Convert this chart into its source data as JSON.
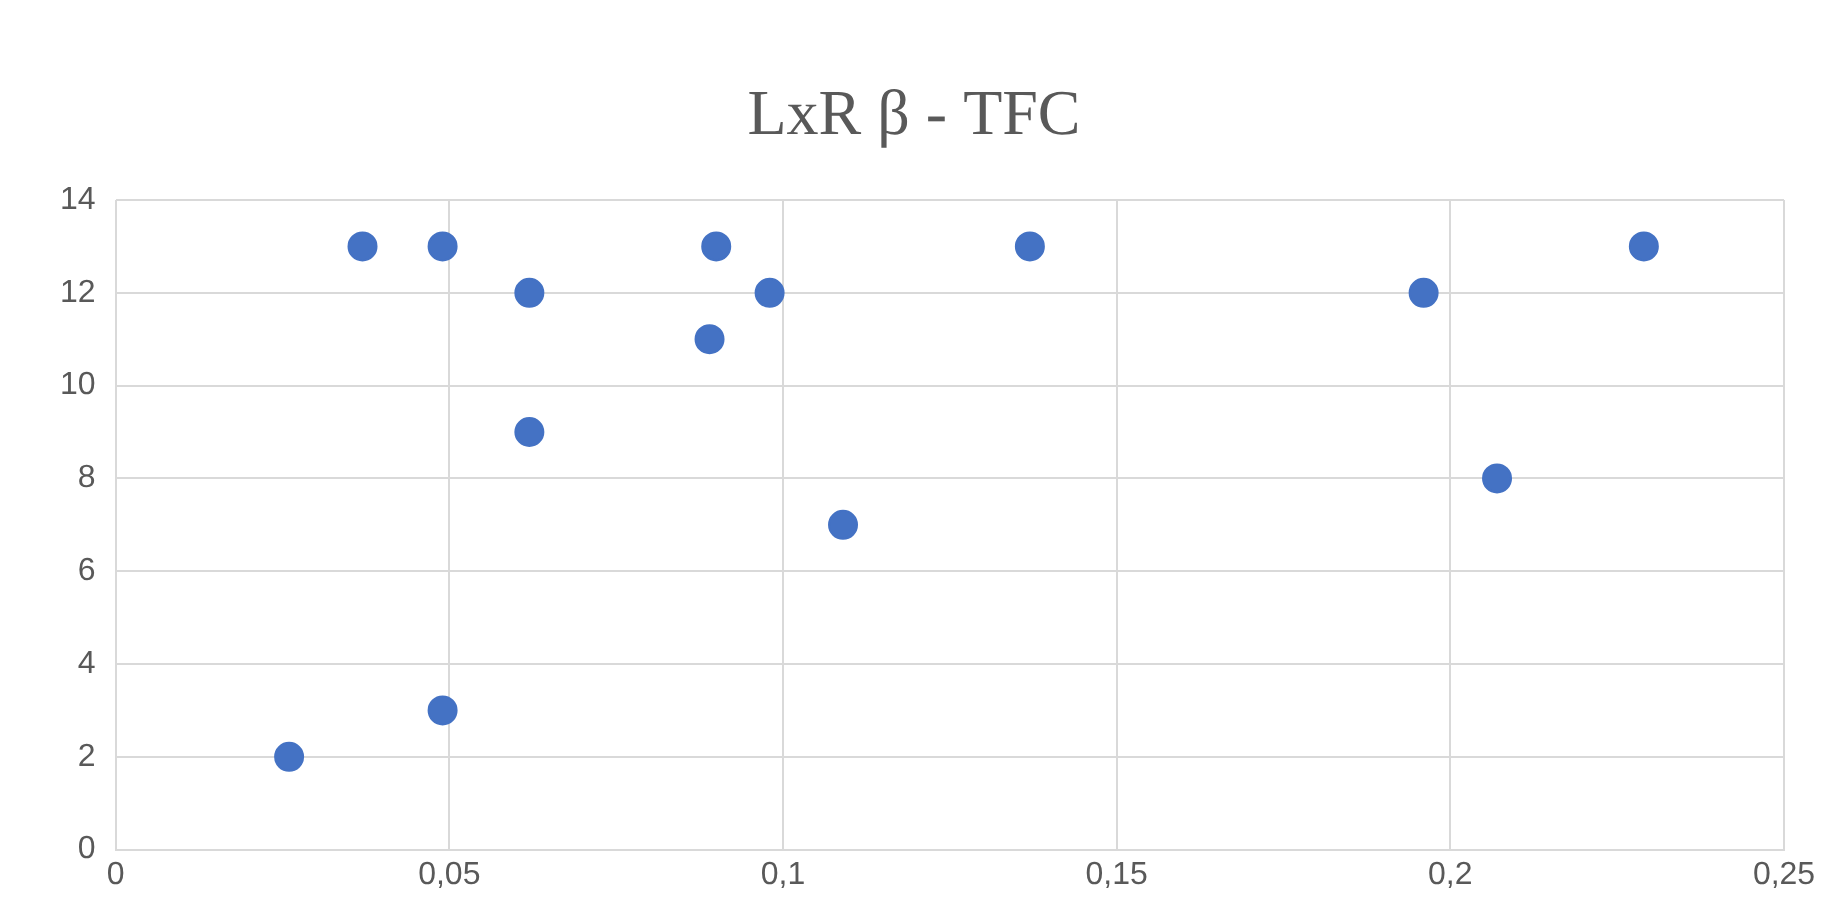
{
  "chart_data": {
    "type": "scatter",
    "title": "LxR β - TFC",
    "x": [
      0.026,
      0.037,
      0.049,
      0.049,
      0.062,
      0.062,
      0.089,
      0.09,
      0.098,
      0.109,
      0.137,
      0.196,
      0.207,
      0.229
    ],
    "values": [
      2,
      13,
      13,
      3,
      12,
      9,
      11,
      13,
      12,
      7,
      13,
      12,
      8,
      13
    ],
    "color": "#4472c4",
    "marker": "circle",
    "xlim": [
      0,
      0.25
    ],
    "xticks": [
      0,
      {
        "value": 0.05,
        "label": "0,05"
      },
      {
        "value": 0.1,
        "label": "0,1"
      },
      {
        "value": 0.15,
        "label": "0,15"
      },
      {
        "value": 0.2,
        "label": "0,2"
      },
      {
        "value": 0.25,
        "label": "0,25"
      }
    ],
    "ylim": [
      0,
      14
    ],
    "yticks": [
      0,
      2,
      4,
      6,
      8,
      10,
      12,
      14
    ],
    "grid": true,
    "legend": false
  }
}
